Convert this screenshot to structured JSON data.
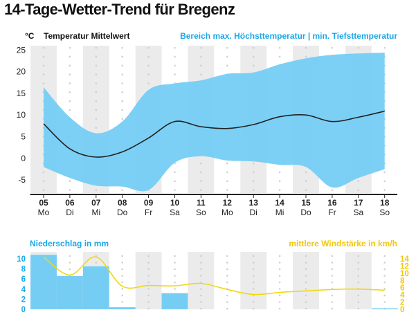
{
  "title": "14-Tage-Wetter-Trend für Bregenz",
  "colors": {
    "range_fill": "#76cdf4",
    "mean_line": "#222222",
    "rain_bar": "#76cdf4",
    "rain_axis": "#19a8e8",
    "wind_line": "#f2d80e",
    "wind_axis": "#f2c80c",
    "stripe": "#ebebeb",
    "grid_dot": "#cfcfcf"
  },
  "chart_data": [
    {
      "type": "area",
      "unit_label": "°C",
      "legend_left": "Temperatur Mittelwert",
      "legend_right": "Bereich max. Höchsttemperatur | min. Tiefsttemperatur",
      "x": [
        "05",
        "06",
        "07",
        "08",
        "09",
        "10",
        "11",
        "12",
        "13",
        "14",
        "15",
        "16",
        "17",
        "18"
      ],
      "weekdays": [
        "Mo",
        "Di",
        "Mi",
        "Do",
        "Fr",
        "Sa",
        "So",
        "Mo",
        "Di",
        "Mi",
        "Do",
        "Fr",
        "Sa",
        "So"
      ],
      "ylim": [
        -8,
        26
      ],
      "yticks": [
        25,
        20,
        15,
        10,
        5,
        0,
        -5
      ],
      "series": [
        {
          "name": "Temperatur Mittelwert",
          "type": "line",
          "values": [
            8,
            2.2,
            0.3,
            1.5,
            4.7,
            8.5,
            7.3,
            6.9,
            7.8,
            9.6,
            10,
            8.5,
            9.5,
            10.9
          ]
        },
        {
          "name": "Bereich max. Höchsttemperatur | min. Tiefsttemperatur",
          "type": "range",
          "high": [
            16.4,
            9.5,
            5.8,
            8.5,
            15.8,
            17.3,
            18,
            19.5,
            19.8,
            21.7,
            23.1,
            23.9,
            24.2,
            24.4
          ],
          "low": [
            -2,
            -4.5,
            -6.3,
            -6.5,
            -7.3,
            -1,
            0.5,
            -0.5,
            -0.7,
            -1.5,
            -2,
            -6.7,
            -4.5,
            -2.5
          ]
        }
      ]
    },
    {
      "type": "bar",
      "legend_left": "Niederschlag in mm",
      "legend_right": "mittlere Windstärke in km/h",
      "x": [
        "05",
        "06",
        "07",
        "08",
        "09",
        "10",
        "11",
        "12",
        "13",
        "14",
        "15",
        "16",
        "17",
        "18"
      ],
      "ylim_left": [
        0,
        10
      ],
      "yticks_left": [
        10,
        8,
        6,
        4,
        2,
        0
      ],
      "ylim_right": [
        0,
        14
      ],
      "yticks_right": [
        14,
        12,
        10,
        8,
        6,
        4,
        2,
        0
      ],
      "series": [
        {
          "name": "Niederschlag in mm",
          "type": "bar",
          "values": [
            10.8,
            6.6,
            8.5,
            0.4,
            0,
            3.2,
            0,
            0,
            0,
            0,
            0,
            0,
            0,
            0.2
          ]
        },
        {
          "name": "mittlere Windstärke in km/h",
          "type": "line",
          "values": [
            14.5,
            9.5,
            14.5,
            6.4,
            6.6,
            6.5,
            7.2,
            5.5,
            4.1,
            4.7,
            5.1,
            5.5,
            5.6,
            5.3
          ]
        }
      ]
    }
  ]
}
